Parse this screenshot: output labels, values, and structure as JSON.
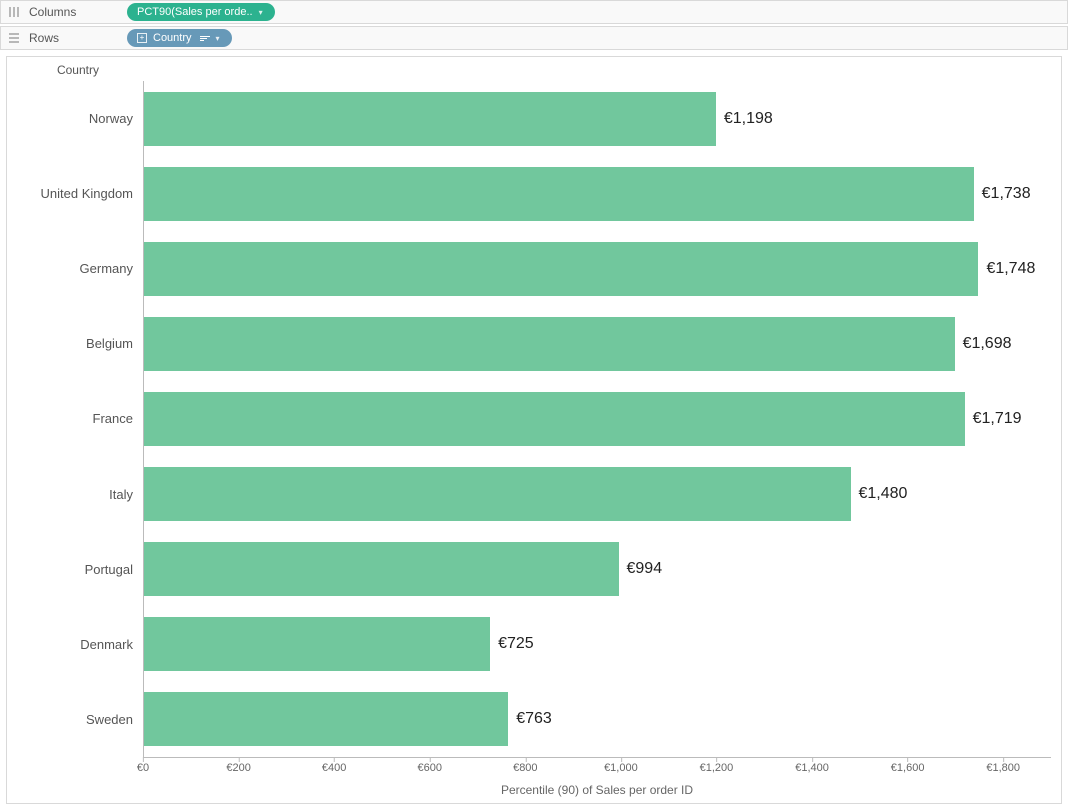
{
  "shelves": {
    "columns_label": "Columns",
    "rows_label": "Rows",
    "columns_pill": "PCT90(Sales per orde..",
    "rows_pill": "Country"
  },
  "chart": {
    "type": "bar",
    "row_header": "Country",
    "x_axis_label": "Percentile (90) of Sales per order ID",
    "bar_color": "#71c79d",
    "background_color": "#ffffff",
    "label_fontsize": 16,
    "row_label_fontsize": 13,
    "axis_fontsize": 11,
    "xmax": 1900,
    "ticks": [
      {
        "v": 0,
        "label": "€0"
      },
      {
        "v": 200,
        "label": "€200"
      },
      {
        "v": 400,
        "label": "€400"
      },
      {
        "v": 600,
        "label": "€600"
      },
      {
        "v": 800,
        "label": "€800"
      },
      {
        "v": 1000,
        "label": "€1,000"
      },
      {
        "v": 1200,
        "label": "€1,200"
      },
      {
        "v": 1400,
        "label": "€1,400"
      },
      {
        "v": 1600,
        "label": "€1,600"
      },
      {
        "v": 1800,
        "label": "€1,800"
      }
    ],
    "rows": [
      {
        "country": "Norway",
        "value": 1198,
        "label": "€1,198"
      },
      {
        "country": "United Kingdom",
        "value": 1738,
        "label": "€1,738"
      },
      {
        "country": "Germany",
        "value": 1748,
        "label": "€1,748"
      },
      {
        "country": "Belgium",
        "value": 1698,
        "label": "€1,698"
      },
      {
        "country": "France",
        "value": 1719,
        "label": "€1,719"
      },
      {
        "country": "Italy",
        "value": 1480,
        "label": "€1,480"
      },
      {
        "country": "Portugal",
        "value": 994,
        "label": "€994"
      },
      {
        "country": "Denmark",
        "value": 725,
        "label": "€725"
      },
      {
        "country": "Sweden",
        "value": 763,
        "label": "€763"
      }
    ]
  },
  "colors": {
    "pill_green": "#2cb28f",
    "pill_blue": "#6799b8",
    "border": "#d9d9d9",
    "axis": "#bbbbbb",
    "text_muted": "#666666"
  }
}
